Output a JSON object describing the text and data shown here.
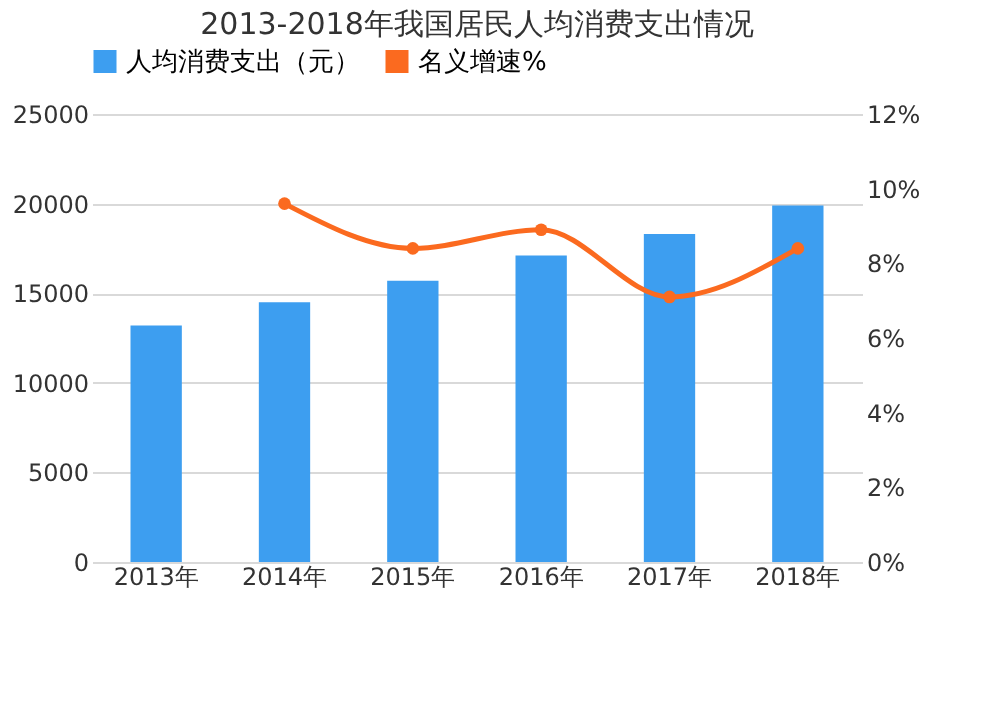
{
  "chart_data": {
    "type": "bar",
    "title": "2013-2018年我国居民人均消费支出情况",
    "categories": [
      "2013年",
      "2014年",
      "2015年",
      "2016年",
      "2017年",
      "2018年"
    ],
    "series": [
      {
        "name": "人均消费支出（元）",
        "color": "#3d9ef0",
        "values": [
          13200,
          14500,
          15700,
          17100,
          18300,
          19900
        ]
      },
      {
        "name": "名义增速%",
        "color": "#fb6a1f",
        "type": "line",
        "axis": "y2",
        "marker": "circle",
        "values": [
          null,
          9.6,
          8.4,
          8.9,
          7.1,
          8.4
        ]
      }
    ],
    "ylim": [
      0,
      25000
    ],
    "yticks": [
      0,
      5000,
      10000,
      15000,
      20000,
      25000
    ],
    "y2lim": [
      0,
      12
    ],
    "y2ticks": [
      {
        "value": 0,
        "label": "0%"
      },
      {
        "value": 2,
        "label": "2%"
      },
      {
        "value": 4,
        "label": "4%"
      },
      {
        "value": 6,
        "label": "6%"
      },
      {
        "value": 8,
        "label": "8%"
      },
      {
        "value": 10,
        "label": "10%"
      },
      {
        "value": 12,
        "label": "12%"
      }
    ],
    "grid": "y",
    "legend": "top"
  }
}
